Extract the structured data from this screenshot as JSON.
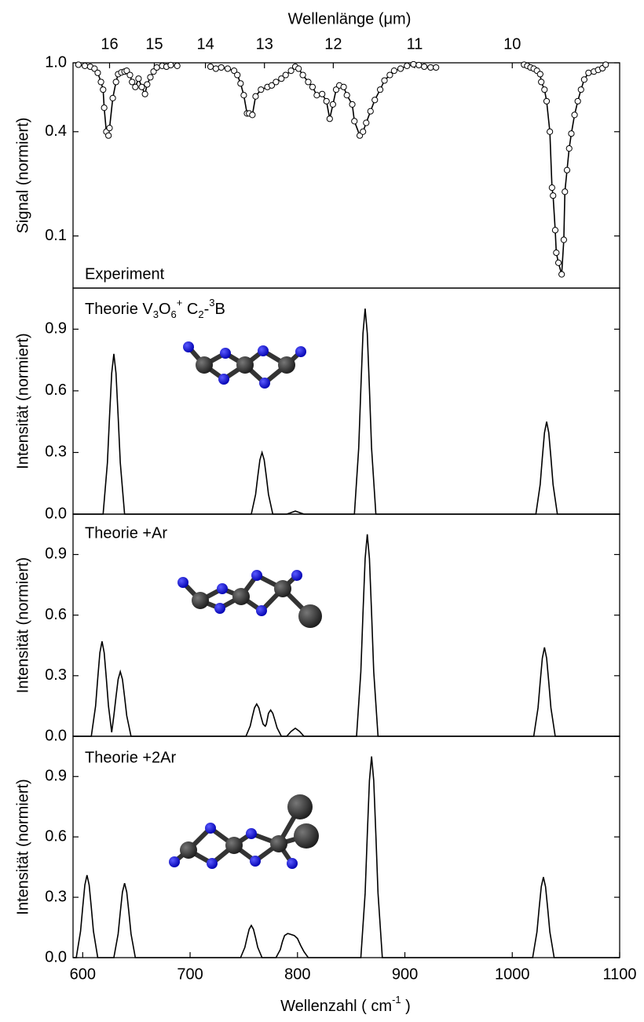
{
  "chart_data": [
    {
      "type": "line",
      "markers": true,
      "yscale": "log",
      "ylabel": "Signal (normiert)",
      "label": "Experiment",
      "x2label": "Wellenlänge (μm)",
      "x2ticks": [
        16,
        15,
        14,
        13,
        12,
        11,
        10
      ],
      "xlim": [
        591,
        1100
      ],
      "ylim": [
        0.05,
        1.0
      ],
      "yticks": [
        {
          "value": 1,
          "label": "1.0"
        },
        0.4,
        0.1
      ],
      "series": [
        {
          "color": "#000000",
          "x": [
            596,
            602,
            607,
            611,
            614,
            617,
            619,
            620,
            622,
            624,
            625,
            628,
            631,
            633,
            636,
            639,
            641,
            644,
            646,
            649,
            652,
            655,
            658,
            660,
            663,
            666,
            669,
            674,
            678,
            682,
            688
          ],
          "values": [
            0.975,
            0.96,
            0.95,
            0.925,
            0.875,
            0.775,
            0.7,
            0.55,
            0.4,
            0.38,
            0.42,
            0.625,
            0.775,
            0.86,
            0.88,
            0.89,
            0.9,
            0.85,
            0.775,
            0.725,
            0.81,
            0.725,
            0.66,
            0.75,
            0.825,
            0.89,
            0.94,
            0.96,
            0.95,
            0.97,
            0.96
          ]
        },
        {
          "color": "#000000",
          "x": [
            719,
            724,
            729,
            735,
            741,
            744,
            747,
            750,
            753,
            755,
            758,
            761,
            766,
            772,
            776,
            780,
            785,
            789,
            794,
            798,
            801,
            805,
            810,
            814,
            818,
            823,
            827,
            830,
            833,
            836,
            839,
            843,
            846,
            851,
            853,
            858,
            861,
            864,
            868,
            872,
            877,
            881,
            886,
            890,
            896,
            902,
            908,
            913,
            918,
            924,
            929
          ],
          "values": [
            0.95,
            0.925,
            0.94,
            0.925,
            0.9,
            0.85,
            0.76,
            0.65,
            0.51,
            0.51,
            0.5,
            0.64,
            0.7,
            0.725,
            0.74,
            0.775,
            0.81,
            0.85,
            0.9,
            0.95,
            0.925,
            0.85,
            0.775,
            0.725,
            0.65,
            0.66,
            0.6,
            0.475,
            0.575,
            0.7,
            0.74,
            0.725,
            0.65,
            0.575,
            0.46,
            0.38,
            0.4,
            0.45,
            0.525,
            0.61,
            0.7,
            0.79,
            0.85,
            0.9,
            0.925,
            0.96,
            0.98,
            0.97,
            0.95,
            0.94,
            0.94
          ]
        },
        {
          "color": "#000000",
          "x": [
            1011,
            1014,
            1017,
            1020,
            1023,
            1026,
            1027,
            1030,
            1032,
            1035,
            1037,
            1038,
            1040,
            1041,
            1043,
            1046,
            1048,
            1049,
            1051,
            1053,
            1055,
            1058,
            1061,
            1064,
            1067,
            1071,
            1076,
            1080,
            1084,
            1087
          ],
          "values": [
            0.975,
            0.96,
            0.94,
            0.925,
            0.9,
            0.86,
            0.775,
            0.7,
            0.6,
            0.4,
            0.19,
            0.171,
            0.108,
            0.08,
            0.07,
            0.06,
            0.095,
            0.18,
            0.24,
            0.32,
            0.39,
            0.5,
            0.6,
            0.7,
            0.8,
            0.875,
            0.89,
            0.91,
            0.93,
            0.975
          ]
        }
      ]
    },
    {
      "type": "line",
      "ylabel": "Intensität (normiert)",
      "label_parts": [
        "Theorie V",
        "3",
        "O",
        "6",
        "+",
        " C",
        "2",
        "-",
        "3",
        "B"
      ],
      "xlim": [
        591,
        1100
      ],
      "ylim": [
        0,
        1.1
      ],
      "yticks": [
        {
          "value": 0,
          "label": "0.0"
        },
        0.3,
        0.6,
        0.9
      ],
      "color": "#000000",
      "x": [
        591,
        619,
        623,
        625,
        627,
        629,
        631,
        633,
        635,
        639,
        757,
        761,
        763,
        765,
        767,
        769,
        771,
        773,
        777,
        790,
        798,
        806,
        853,
        857,
        859,
        861,
        863,
        865,
        867,
        869,
        873,
        1022,
        1026,
        1028,
        1030,
        1032,
        1034,
        1036,
        1038,
        1042,
        1100
      ],
      "values": [
        0,
        0,
        0.25,
        0.476,
        0.686,
        0.78,
        0.686,
        0.476,
        0.25,
        0,
        0,
        0.096,
        0.183,
        0.264,
        0.3,
        0.264,
        0.183,
        0.096,
        0,
        0,
        0.015,
        0,
        0,
        0.32,
        0.61,
        0.88,
        1.0,
        0.88,
        0.61,
        0.32,
        0,
        0,
        0.144,
        0.275,
        0.396,
        0.45,
        0.396,
        0.275,
        0.144,
        0,
        0
      ]
    },
    {
      "type": "line",
      "ylabel": "Intensität (normiert)",
      "label": "Theorie  +Ar",
      "xlim": [
        591,
        1100
      ],
      "ylim": [
        0,
        1.1
      ],
      "yticks": [
        {
          "value": 0,
          "label": "0.0"
        },
        0.3,
        0.6,
        0.9
      ],
      "color": "#000000",
      "x": [
        591,
        608,
        612,
        614,
        616,
        618,
        620,
        622,
        624,
        627,
        629,
        631,
        633,
        635,
        637,
        639,
        641,
        645,
        752,
        756,
        758,
        760,
        762,
        764,
        766,
        768,
        770,
        771,
        773,
        775,
        777,
        779,
        781,
        785,
        790,
        794,
        798,
        802,
        806,
        855,
        859,
        861,
        863,
        865,
        867,
        869,
        871,
        875,
        1020,
        1024,
        1026,
        1028,
        1030,
        1032,
        1034,
        1036,
        1040,
        1100
      ],
      "values": [
        0,
        0,
        0.15,
        0.287,
        0.414,
        0.47,
        0.414,
        0.287,
        0.15,
        0.02,
        0.102,
        0.195,
        0.282,
        0.32,
        0.282,
        0.195,
        0.102,
        0,
        0,
        0.051,
        0.098,
        0.141,
        0.16,
        0.141,
        0.098,
        0.06,
        0.05,
        0.06,
        0.114,
        0.13,
        0.114,
        0.079,
        0.042,
        0,
        0,
        0.024,
        0.04,
        0.024,
        0,
        0,
        0.32,
        0.61,
        0.88,
        1.0,
        0.88,
        0.61,
        0.32,
        0,
        0,
        0.141,
        0.268,
        0.387,
        0.44,
        0.387,
        0.268,
        0.141,
        0,
        0
      ]
    },
    {
      "type": "line",
      "ylabel": "Intensität (normiert)",
      "label": "Theorie +2Ar",
      "xlabel_parts": [
        "Wellenzahl ( cm",
        "-1",
        " )"
      ],
      "xlim": [
        591,
        1100
      ],
      "ylim": [
        0,
        1.1
      ],
      "xticks": [
        600,
        700,
        800,
        900,
        1000,
        1100
      ],
      "yticks": [
        {
          "value": 0,
          "label": "0.0"
        },
        0.3,
        0.6,
        0.9
      ],
      "color": "#000000",
      "x": [
        591,
        594,
        598,
        600,
        602,
        604,
        606,
        608,
        610,
        614,
        629,
        633,
        635,
        637,
        639,
        641,
        643,
        645,
        649,
        747,
        751,
        753,
        755,
        757,
        759,
        761,
        763,
        767,
        780,
        784,
        786,
        788,
        791,
        794,
        797,
        800,
        803,
        806,
        810,
        859,
        863,
        865,
        867,
        869,
        871,
        873,
        875,
        879,
        1019,
        1023,
        1025,
        1027,
        1029,
        1031,
        1033,
        1035,
        1039,
        1100
      ],
      "values": [
        0,
        0,
        0.131,
        0.25,
        0.361,
        0.41,
        0.361,
        0.25,
        0.131,
        0,
        0,
        0.118,
        0.226,
        0.326,
        0.37,
        0.326,
        0.226,
        0.118,
        0,
        0,
        0.051,
        0.098,
        0.141,
        0.16,
        0.141,
        0.098,
        0.051,
        0,
        0,
        0.04,
        0.08,
        0.11,
        0.12,
        0.115,
        0.11,
        0.095,
        0.06,
        0.03,
        0,
        0,
        0.32,
        0.61,
        0.88,
        1.0,
        0.88,
        0.61,
        0.32,
        0,
        0,
        0.128,
        0.244,
        0.352,
        0.4,
        0.352,
        0.244,
        0.128,
        0,
        0
      ]
    }
  ]
}
